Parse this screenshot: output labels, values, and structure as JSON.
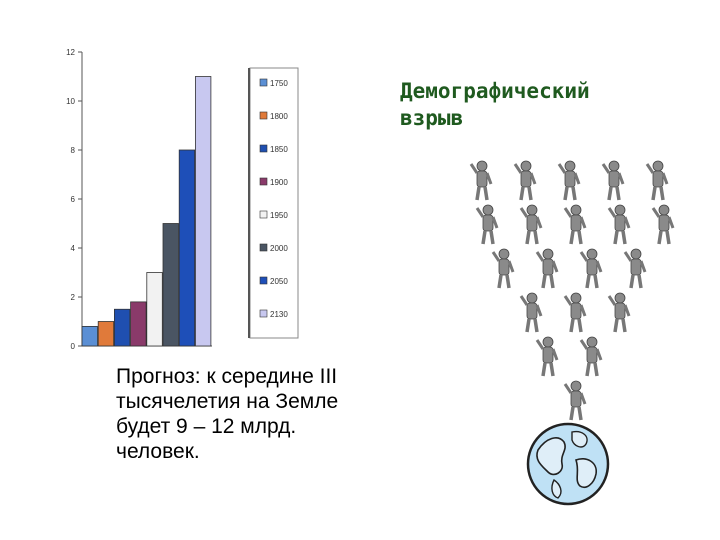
{
  "slide": {
    "title": "Демографический\nвзрыв",
    "caption": "Прогноз: к середине III тысячелетия на Земле будет 9 – 12 млрд. человек."
  },
  "illustration": {
    "icon_figures": "person-icon",
    "icon_globe": "globe-icon",
    "globe_land_color": "#6b9e5a",
    "globe_sea_color": "#bfe1f5"
  },
  "chart_data": {
    "type": "bar",
    "categories": [
      "1750",
      "1800",
      "1850",
      "1900",
      "1950",
      "2000",
      "2050",
      "2130"
    ],
    "values": [
      0.8,
      1.0,
      1.5,
      1.8,
      3.0,
      5.0,
      8.0,
      11.0
    ],
    "colors": [
      "#5b8fd4",
      "#e07a3a",
      "#1f4fb0",
      "#8a3a6a",
      "#f2f2f2",
      "#4a5563",
      "#1e4fb8",
      "#c8c8f0"
    ],
    "ylim": [
      0,
      12
    ],
    "yticks": [
      0,
      2,
      4,
      6,
      8,
      10,
      12
    ],
    "legend_position": "right",
    "grid": false,
    "title": "",
    "xlabel": "",
    "ylabel": ""
  }
}
